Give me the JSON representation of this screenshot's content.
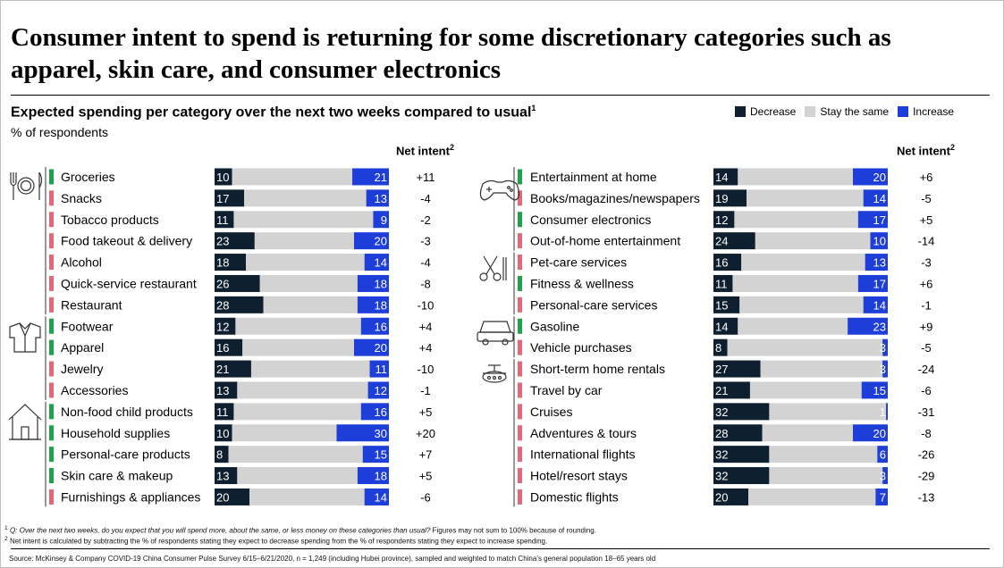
{
  "title": "Consumer intent to spend is returning for some discretionary categories such as apparel, skin care, and consumer electronics",
  "subtitle": "Expected spending per category over the next two weeks compared to usual",
  "subtitle_footnote_mark": "1",
  "unit_label": "% of respondents",
  "net_intent_label": "Net intent",
  "net_intent_footnote_mark": "2",
  "colors": {
    "decrease": "#0e1f2f",
    "stay": "#d3d3d3",
    "increase": "#1d3ed8",
    "positive_marker": "#1fa34a",
    "negative_marker": "#e5677a"
  },
  "legend": {
    "decrease": "Decrease",
    "stay": "Stay the same",
    "increase": "Increase"
  },
  "footnotes": {
    "note1_mark": "1",
    "note1_question": "Q: Over the next two weeks, do you expect that you will spend more, about the same, or less money on these categories than usual?",
    "note1_rest": " Figures may not sum to 100% because of rounding.",
    "note2_mark": "2",
    "note2": "Net intent is calculated by subtracting the % of respondents stating they expect to decrease spending from the % of respondents stating they expect to increase spending.",
    "source": "Source: McKinsey & Company COVID-19 China Consumer Pulse Survey 6/15–6/21/2020, n = 1,249 (including Hubei province), sampled and weighted to match China’s general population 18–65 years old"
  },
  "chart_data": {
    "type": "bar",
    "stacked": true,
    "orientation": "horizontal",
    "xlim": [
      0,
      100
    ],
    "series_order": [
      "decrease",
      "stay",
      "increase"
    ],
    "panels": [
      {
        "groups": [
          {
            "icon": "cutlery-icon",
            "rows": [
              {
                "label": "Groceries",
                "decrease": 10,
                "increase": 21,
                "net": "+11"
              },
              {
                "label": "Snacks",
                "decrease": 17,
                "increase": 13,
                "net": "-4"
              },
              {
                "label": "Tobacco products",
                "decrease": 11,
                "increase": 9,
                "net": "-2"
              },
              {
                "label": "Food takeout & delivery",
                "decrease": 23,
                "increase": 20,
                "net": "-3"
              },
              {
                "label": "Alcohol",
                "decrease": 18,
                "increase": 14,
                "net": "-4"
              },
              {
                "label": "Quick-service restaurant",
                "decrease": 26,
                "increase": 18,
                "net": "-8"
              },
              {
                "label": "Restaurant",
                "decrease": 28,
                "increase": 18,
                "net": "-10"
              }
            ]
          },
          {
            "icon": "shirt-icon",
            "rows": [
              {
                "label": "Footwear",
                "decrease": 12,
                "increase": 16,
                "net": "+4"
              },
              {
                "label": "Apparel",
                "decrease": 16,
                "increase": 20,
                "net": "+4"
              },
              {
                "label": "Jewelry",
                "decrease": 21,
                "increase": 11,
                "net": "-10"
              },
              {
                "label": "Accessories",
                "decrease": 13,
                "increase": 12,
                "net": "-1"
              }
            ]
          },
          {
            "icon": "house-icon",
            "rows": [
              {
                "label": "Non-food child products",
                "decrease": 11,
                "increase": 16,
                "net": "+5"
              },
              {
                "label": "Household supplies",
                "decrease": 10,
                "increase": 30,
                "net": "+20"
              },
              {
                "label": "Personal-care products",
                "decrease": 8,
                "increase": 15,
                "net": "+7"
              },
              {
                "label": "Skin care & makeup",
                "decrease": 13,
                "increase": 18,
                "net": "+5"
              },
              {
                "label": "Furnishings & appliances",
                "decrease": 20,
                "increase": 14,
                "net": "-6"
              }
            ]
          }
        ]
      },
      {
        "groups": [
          {
            "icon": "gamepad-icon",
            "rows": [
              {
                "label": "Entertainment at home",
                "decrease": 14,
                "increase": 20,
                "net": "+6"
              },
              {
                "label": "Books/magazines/newspapers",
                "decrease": 19,
                "increase": 14,
                "net": "-5"
              },
              {
                "label": "Consumer electronics",
                "decrease": 12,
                "increase": 17,
                "net": "+5"
              },
              {
                "label": "Out-of-home entertainment",
                "decrease": 24,
                "increase": 10,
                "net": "-14"
              }
            ]
          },
          {
            "icon": "scissors-icon",
            "rows": [
              {
                "label": "Pet-care services",
                "decrease": 16,
                "increase": 13,
                "net": "-3"
              },
              {
                "label": "Fitness & wellness",
                "decrease": 11,
                "increase": 17,
                "net": "+6"
              },
              {
                "label": "Personal-care services",
                "decrease": 15,
                "increase": 14,
                "net": "-1"
              }
            ]
          },
          {
            "icon": "car-icon",
            "rows": [
              {
                "label": "Gasoline",
                "decrease": 14,
                "increase": 23,
                "net": "+9"
              },
              {
                "label": "Vehicle purchases",
                "decrease": 8,
                "increase": 3,
                "net": "-5"
              }
            ]
          },
          {
            "icon": "airplane-icon",
            "rows": [
              {
                "label": "Short-term home rentals",
                "decrease": 27,
                "increase": 3,
                "net": "-24"
              },
              {
                "label": "Travel by car",
                "decrease": 21,
                "increase": 15,
                "net": "-6"
              },
              {
                "label": "Cruises",
                "decrease": 32,
                "increase": 1,
                "net": "-31"
              },
              {
                "label": "Adventures & tours",
                "decrease": 28,
                "increase": 20,
                "net": "-8"
              },
              {
                "label": "International flights",
                "decrease": 32,
                "increase": 6,
                "net": "-26"
              },
              {
                "label": "Hotel/resort stays",
                "decrease": 32,
                "increase": 3,
                "net": "-29"
              },
              {
                "label": "Domestic flights",
                "decrease": 20,
                "increase": 7,
                "net": "-13"
              }
            ]
          }
        ]
      }
    ]
  }
}
